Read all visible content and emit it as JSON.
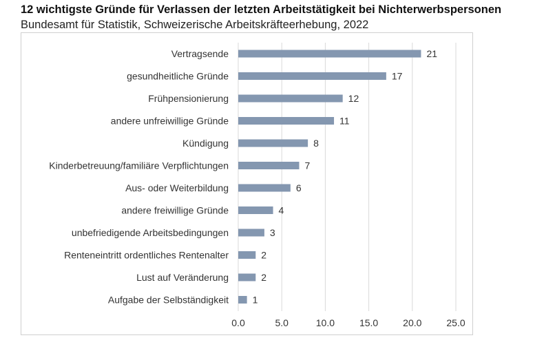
{
  "chart_data": {
    "type": "bar",
    "orientation": "horizontal",
    "title": "12 wichtigste Gründe für Verlassen der letzten Arbeitstätigkeit bei Nichterwerbspersonen",
    "subtitle": "Bundesamt für Statistik, Schweizerische Arbeitskräfteerhebung, 2022",
    "categories": [
      "Vertragsende",
      "gesundheitliche Gründe",
      "Frühpensionierung",
      "andere unfreiwillige Gründe",
      "Kündigung",
      "Kinderbetreuung/familiäre Verpflichtungen",
      "Aus- oder Weiterbildung",
      "andere freiwillige Gründe",
      "unbefriedigende Arbeitsbedingungen",
      "Renteneintritt ordentliches Rentenalter",
      "Lust auf Veränderung",
      "Aufgabe der Selbständigkeit"
    ],
    "values": [
      21,
      17,
      12,
      11,
      8,
      7,
      6,
      4,
      3,
      2,
      2,
      1
    ],
    "xlim": [
      0,
      25
    ],
    "xticks": [
      "0.0",
      "5.0",
      "10.0",
      "15.0",
      "20.0",
      "25.0"
    ],
    "grid": "vertical",
    "bar_color": "#8497b0"
  }
}
